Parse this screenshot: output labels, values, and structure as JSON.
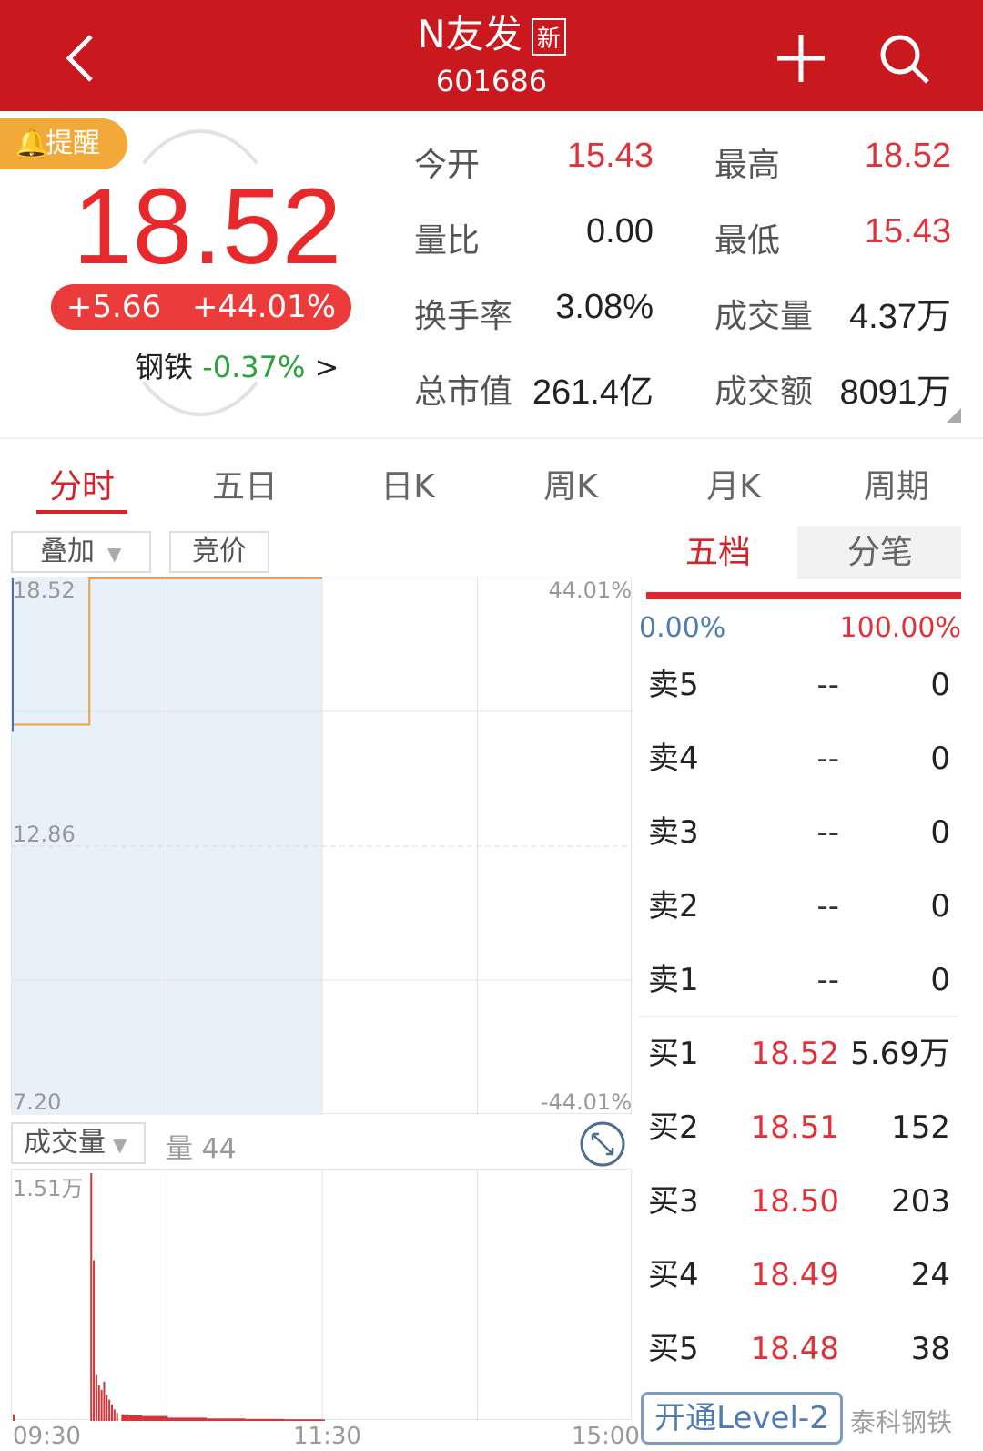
{
  "header": {
    "name": "N友发",
    "new_badge": "新",
    "code": "601686"
  },
  "quote": {
    "remind_label": "提醒",
    "price": "18.52",
    "change": "+5.66",
    "change_pct": "+44.01%",
    "sector_name": "钢铁",
    "sector_change": "-0.37%",
    "sector_arrow": ">"
  },
  "stats": [
    {
      "label": "今开",
      "value": "15.43",
      "color": "red"
    },
    {
      "label": "最高",
      "value": "18.52",
      "color": "red"
    },
    {
      "label": "量比",
      "value": "0.00",
      "color": "black"
    },
    {
      "label": "最低",
      "value": "15.43",
      "color": "red"
    },
    {
      "label": "换手率",
      "value": "3.08%",
      "color": "black"
    },
    {
      "label": "成交量",
      "value": "4.37万",
      "color": "black"
    },
    {
      "label": "总市值",
      "value": "261.4亿",
      "color": "black"
    },
    {
      "label": "成交额",
      "value": "8091万",
      "color": "black"
    }
  ],
  "tabs": [
    "分时",
    "五日",
    "日K",
    "周K",
    "月K",
    "周期"
  ],
  "chart_toolbar": {
    "overlay": "叠加",
    "auction": "竞价",
    "volume_select": "成交量",
    "volume_readout": "量 44"
  },
  "colors": {
    "header": "#c9191e",
    "up": "#e0323a",
    "down": "#2aa33a",
    "price_line": "#f0a040",
    "avg_line": "#4a6fc0",
    "volume": "#d0363a"
  },
  "chart_data": [
    {
      "type": "line",
      "y_ticks_left": [
        "18.52",
        "12.86",
        "7.20"
      ],
      "y_ticks_right": [
        "44.01%",
        "-44.01%"
      ],
      "ylim": [
        7.2,
        18.52
      ],
      "x_ticks": [
        "09:30",
        "11:30",
        "15:00"
      ],
      "series": [
        {
          "x": [
            "09:30",
            "10:00",
            "10:00",
            "11:30"
          ],
          "y": [
            15.43,
            15.43,
            18.52,
            18.52
          ]
        }
      ]
    },
    {
      "type": "bar",
      "y_max_label": "1.51万",
      "ylim": [
        0,
        15100
      ],
      "x": [
        "09:30",
        "10:00",
        "10:01",
        "10:02",
        "10:03",
        "10:04",
        "10:05",
        "10:06",
        "10:07",
        "10:08",
        "10:09",
        "10:10",
        "10:12",
        "10:15",
        "10:20",
        "10:30",
        "10:45",
        "11:00",
        "11:15",
        "11:30"
      ],
      "values": [
        400,
        15100,
        9800,
        2800,
        2200,
        1900,
        2400,
        1600,
        1300,
        1000,
        700,
        500,
        400,
        350,
        300,
        200,
        150,
        120,
        100,
        80
      ]
    }
  ],
  "orderbook": {
    "tabs": [
      "五档",
      "分笔"
    ],
    "ratio_left": "0.00%",
    "ratio_right": "100.00%",
    "asks": [
      {
        "label": "卖5",
        "price": "--",
        "vol": "0"
      },
      {
        "label": "卖4",
        "price": "--",
        "vol": "0"
      },
      {
        "label": "卖3",
        "price": "--",
        "vol": "0"
      },
      {
        "label": "卖2",
        "price": "--",
        "vol": "0"
      },
      {
        "label": "卖1",
        "price": "--",
        "vol": "0"
      }
    ],
    "bids": [
      {
        "label": "买1",
        "price": "18.52",
        "vol": "5.69万"
      },
      {
        "label": "买2",
        "price": "18.51",
        "vol": "152"
      },
      {
        "label": "买3",
        "price": "18.50",
        "vol": "203"
      },
      {
        "label": "买4",
        "price": "18.49",
        "vol": "24"
      },
      {
        "label": "买5",
        "price": "18.48",
        "vol": "38"
      }
    ],
    "level2_button": "开通Level-2"
  },
  "watermark": "泰科钢铁"
}
